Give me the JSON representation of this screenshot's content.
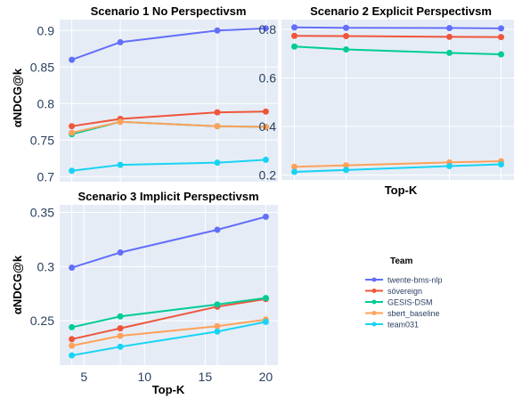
{
  "figure": {
    "ylabel": "αNDCG@k",
    "xlabel": "Top-K",
    "legend_title": "Team"
  },
  "colors": {
    "plot_bg": "#e5ecf6",
    "grid": "#ffffff",
    "twente-bms-nlp": "#636efa",
    "sövereign": "#ef553b",
    "GESIS-DSM": "#00cc96",
    "sbert_baseline": "#ffa15a",
    "team031": "#19d3f3"
  },
  "chart_data": [
    {
      "type": "line",
      "title": "Scenario 1 No Perspectivsm",
      "x": [
        4,
        8,
        16,
        20
      ],
      "xlim": [
        3,
        21
      ],
      "ylim": [
        0.693,
        0.915
      ],
      "yticks": [
        0.7,
        0.75,
        0.8,
        0.85,
        0.9
      ],
      "ytick_labels": [
        "0.7",
        "0.75",
        "0.8",
        "0.85",
        "0.9"
      ],
      "series": [
        {
          "name": "twente-bms-nlp",
          "values": [
            0.86,
            0.884,
            0.9,
            0.903
          ]
        },
        {
          "name": "sövereign",
          "values": [
            0.769,
            0.779,
            0.788,
            0.789
          ]
        },
        {
          "name": "GESIS-DSM",
          "values": [
            0.758,
            0.775,
            0.769,
            0.768
          ]
        },
        {
          "name": "sbert_baseline",
          "values": [
            0.76,
            0.775,
            0.769,
            0.768
          ]
        },
        {
          "name": "team031",
          "values": [
            0.708,
            0.716,
            0.719,
            0.723
          ]
        }
      ]
    },
    {
      "type": "line",
      "title": "Scenario 2 Explicit Perspectivsm",
      "x": [
        4,
        8,
        16,
        20
      ],
      "xlim": [
        3,
        21
      ],
      "ylim": [
        0.18,
        0.84
      ],
      "yticks": [
        0.2,
        0.4,
        0.6,
        0.8
      ],
      "ytick_labels": [
        "0.2",
        "0.4",
        "0.6",
        "0.8"
      ],
      "xlabel": "Top-K",
      "series": [
        {
          "name": "twente-bms-nlp",
          "values": [
            0.808,
            0.806,
            0.805,
            0.804
          ]
        },
        {
          "name": "sövereign",
          "values": [
            0.773,
            0.772,
            0.769,
            0.768
          ]
        },
        {
          "name": "GESIS-DSM",
          "values": [
            0.729,
            0.717,
            0.703,
            0.697
          ]
        },
        {
          "name": "sbert_baseline",
          "values": [
            0.234,
            0.24,
            0.252,
            0.257
          ]
        },
        {
          "name": "team031",
          "values": [
            0.213,
            0.221,
            0.237,
            0.244
          ]
        }
      ]
    },
    {
      "type": "line",
      "title": "Scenario 3 Implicit Perspectivsm",
      "x": [
        4,
        8,
        16,
        20
      ],
      "xlim": [
        3,
        21
      ],
      "ylim": [
        0.209,
        0.357
      ],
      "yticks": [
        0.25,
        0.3,
        0.35
      ],
      "ytick_labels": [
        "0.25",
        "0.3",
        "0.35"
      ],
      "xticks": [
        5,
        10,
        15,
        20
      ],
      "xtick_labels": [
        "5",
        "10",
        "15",
        "20"
      ],
      "xlabel": "Top-K",
      "series": [
        {
          "name": "twente-bms-nlp",
          "values": [
            0.299,
            0.313,
            0.334,
            0.346
          ]
        },
        {
          "name": "sövereign",
          "values": [
            0.233,
            0.243,
            0.263,
            0.27
          ]
        },
        {
          "name": "GESIS-DSM",
          "values": [
            0.244,
            0.254,
            0.265,
            0.271
          ]
        },
        {
          "name": "sbert_baseline",
          "values": [
            0.227,
            0.236,
            0.245,
            0.251
          ]
        },
        {
          "name": "team031",
          "values": [
            0.218,
            0.226,
            0.24,
            0.249
          ]
        }
      ]
    }
  ]
}
